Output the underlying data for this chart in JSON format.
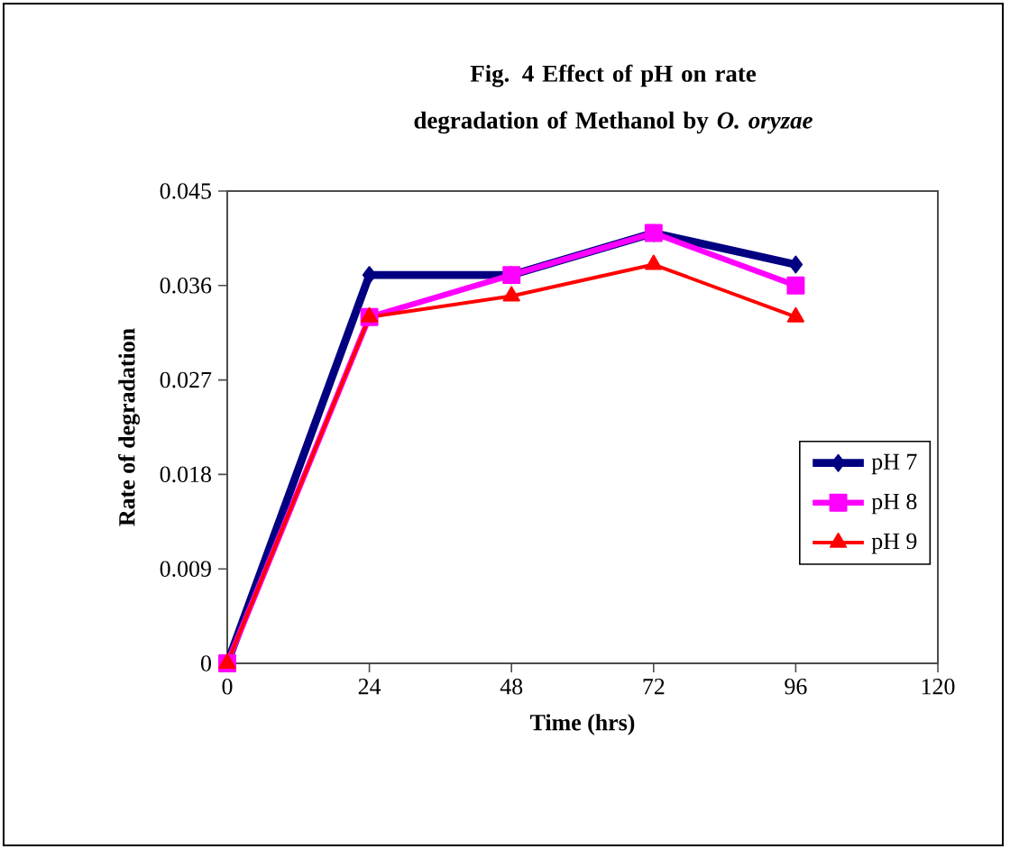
{
  "chart_data": {
    "type": "line",
    "title": "Fig. 4 Effect of pH on rate degradation of Methanol by *O. oryzae*",
    "xlabel": "Time (hrs)",
    "ylabel": "Rate of degradation",
    "x": [
      0,
      24,
      48,
      72,
      96
    ],
    "series": [
      {
        "name": "pH 7",
        "color": "#000080",
        "marker": "diamond",
        "values": [
          0,
          0.037,
          0.037,
          0.041,
          0.038
        ]
      },
      {
        "name": "pH 8",
        "color": "#ff00ff",
        "marker": "square",
        "values": [
          0,
          0.033,
          0.037,
          0.041,
          0.036
        ]
      },
      {
        "name": "pH 9",
        "color": "#ff0000",
        "marker": "triangle",
        "values": [
          0,
          0.033,
          0.035,
          0.038,
          0.033
        ]
      }
    ],
    "xlim": [
      0,
      120
    ],
    "xticks": [
      0,
      24,
      48,
      72,
      96,
      120
    ],
    "ylim": [
      0,
      0.045
    ],
    "yticks": [
      0,
      0.009,
      0.018,
      0.027,
      0.036,
      0.045
    ],
    "grid": false,
    "legend": "right",
    "line_style": "solid"
  }
}
